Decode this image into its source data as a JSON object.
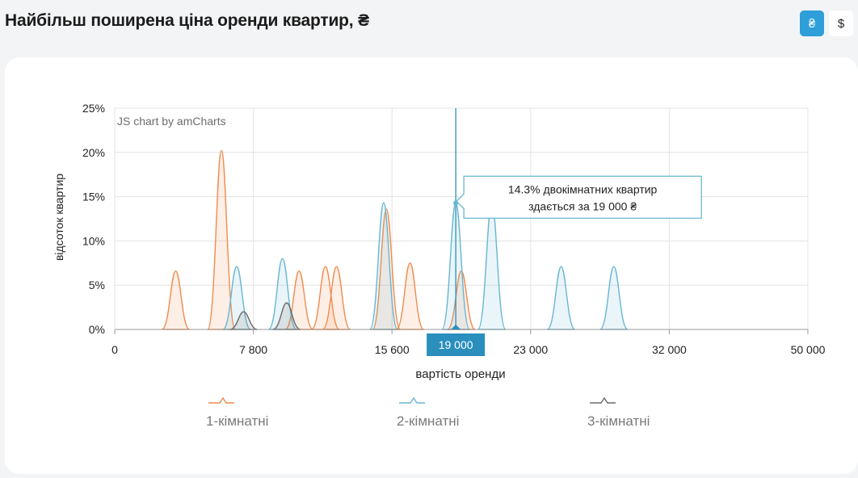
{
  "header": {
    "title": "Найбільш поширена ціна оренди квартир, ₴",
    "currency_uah": "₴",
    "currency_usd": "$"
  },
  "colors": {
    "accent": "#2e9fd8",
    "series_1": "#ef8c4f",
    "series_2": "#67b7d1",
    "series_3": "#6b6b6b",
    "cursor": "#2a8fbd"
  },
  "chart_data": {
    "type": "area",
    "watermark": "JS chart by amCharts",
    "xlabel": "вартість оренди",
    "ylabel": "відсоток квартир",
    "x_ticks": [
      {
        "pos": 0,
        "label": "0"
      },
      {
        "pos": 1,
        "label": "7 800"
      },
      {
        "pos": 2,
        "label": "15 600"
      },
      {
        "pos": 3,
        "label": "23 000"
      },
      {
        "pos": 4,
        "label": "32 000"
      },
      {
        "pos": 5,
        "label": "50 000"
      }
    ],
    "y_ticks": [
      "0%",
      "5%",
      "10%",
      "15%",
      "20%",
      "25%"
    ],
    "ylim": [
      0,
      25
    ],
    "cursor": {
      "pos": 2.46,
      "label": "19 000"
    },
    "tooltip": {
      "line1": "14.3% двокімнатних квартир",
      "line2": "здається за 19 000 ₴"
    },
    "legend_position": "bottom",
    "series": [
      {
        "name": "1-кімнатні",
        "peaks": [
          {
            "pos": 0.44,
            "value": 6.6
          },
          {
            "pos": 0.77,
            "value": 20.2
          },
          {
            "pos": 1.33,
            "value": 6.6
          },
          {
            "pos": 1.52,
            "value": 7.1
          },
          {
            "pos": 1.6,
            "value": 7.1
          },
          {
            "pos": 1.96,
            "value": 13.6
          },
          {
            "pos": 2.13,
            "value": 7.5
          },
          {
            "pos": 2.5,
            "value": 6.6
          }
        ]
      },
      {
        "name": "2-кімнатні",
        "peaks": [
          {
            "pos": 0.88,
            "value": 7.1
          },
          {
            "pos": 1.21,
            "value": 8.0
          },
          {
            "pos": 1.94,
            "value": 14.3
          },
          {
            "pos": 2.46,
            "value": 14.3
          },
          {
            "pos": 2.72,
            "value": 14.3
          },
          {
            "pos": 3.22,
            "value": 7.1
          },
          {
            "pos": 3.6,
            "value": 7.1
          }
        ]
      },
      {
        "name": "3-кімнатні",
        "peaks": [
          {
            "pos": 0.93,
            "value": 2.0
          },
          {
            "pos": 1.24,
            "value": 3.0
          }
        ]
      }
    ]
  }
}
